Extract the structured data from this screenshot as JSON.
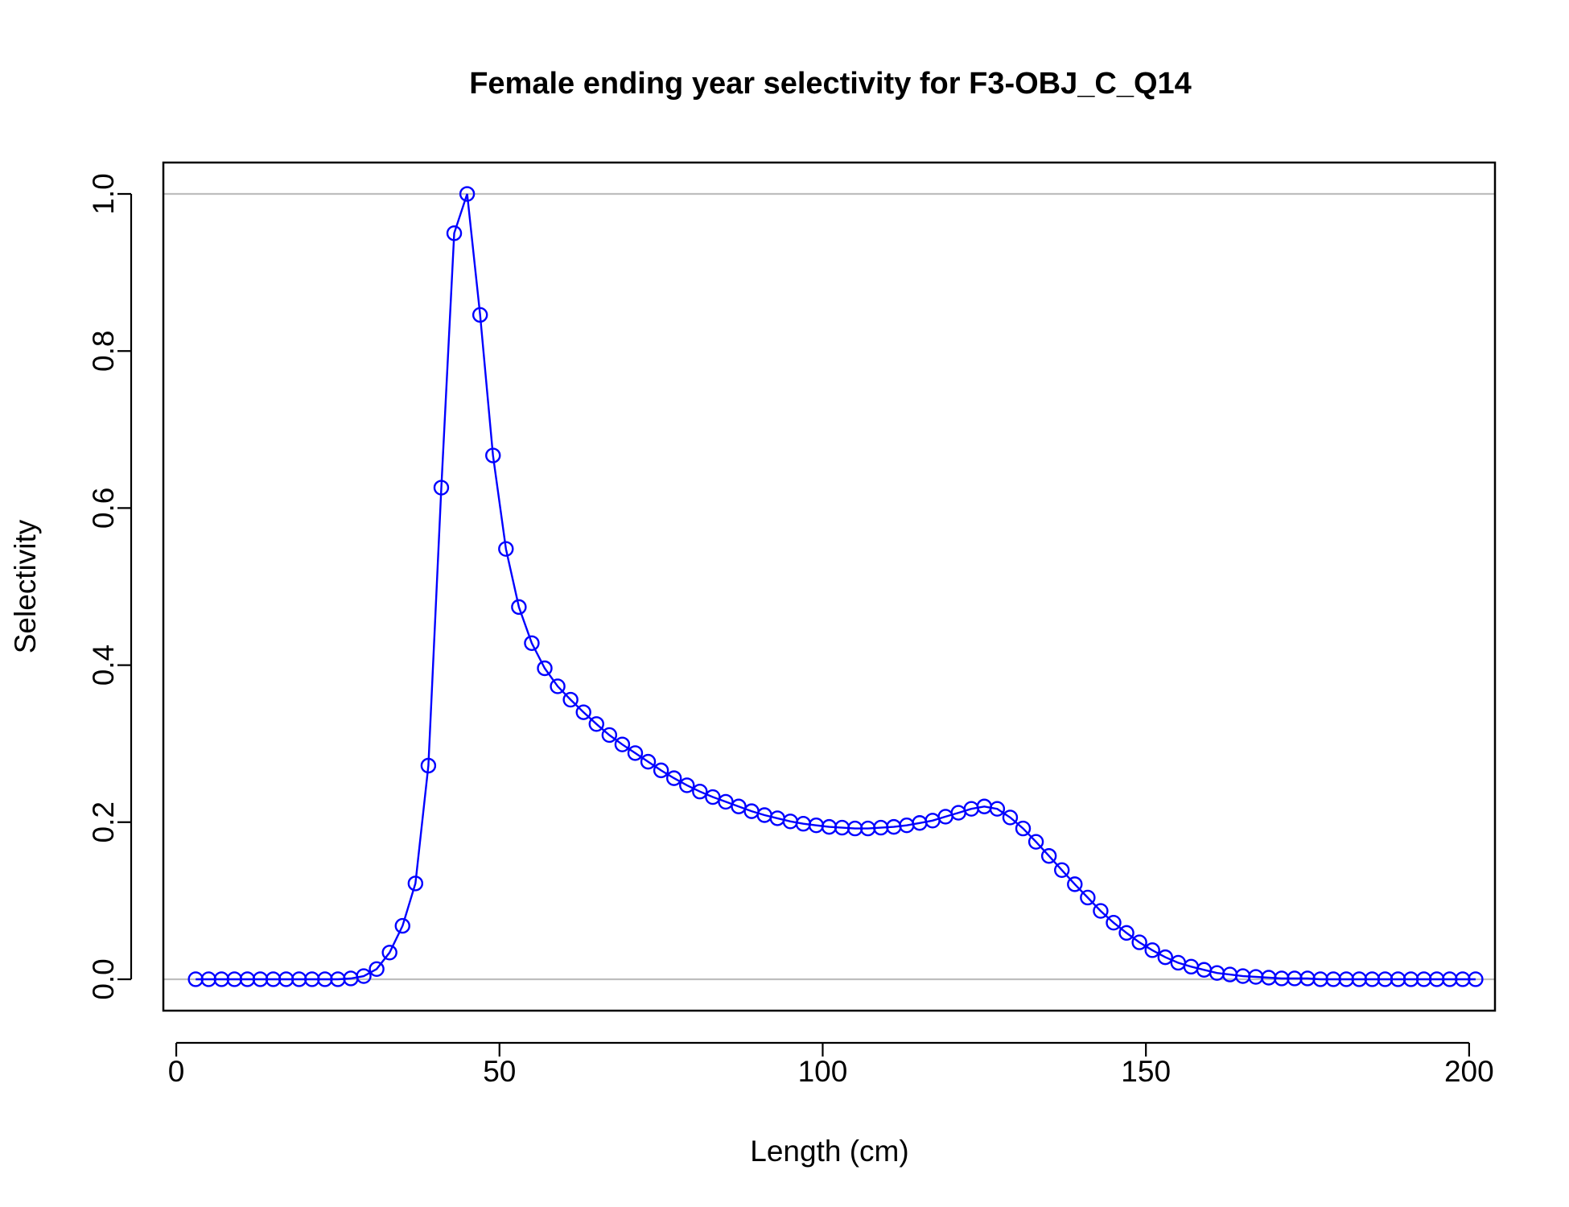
{
  "chart_data": {
    "type": "line",
    "title": "Female ending year selectivity for F3-OBJ_C_Q14",
    "xlabel": "Length (cm)",
    "ylabel": "Selectivity",
    "xlim": [
      -2,
      204
    ],
    "ylim": [
      -0.04,
      1.04
    ],
    "x_ticks": [
      0,
      50,
      100,
      150,
      200
    ],
    "x_tick_labels": [
      "0",
      "50",
      "100",
      "150",
      "200"
    ],
    "y_ticks": [
      0,
      0.2,
      0.4,
      0.6,
      0.8,
      1.0
    ],
    "y_tick_labels": [
      "0.0",
      "0.2",
      "0.4",
      "0.6",
      "0.8",
      "1.0"
    ],
    "reference_lines": [
      0,
      1
    ],
    "grid": false,
    "series": [
      {
        "markers": "open-circle",
        "color": "#0000ff",
        "x": [
          3,
          5,
          7,
          9,
          11,
          13,
          15,
          17,
          19,
          21,
          23,
          25,
          27,
          29,
          31,
          33,
          35,
          37,
          39,
          41,
          43,
          45,
          47,
          49,
          51,
          53,
          55,
          57,
          59,
          61,
          63,
          65,
          67,
          69,
          71,
          73,
          75,
          77,
          79,
          81,
          83,
          85,
          87,
          89,
          91,
          93,
          95,
          97,
          99,
          101,
          103,
          105,
          107,
          109,
          111,
          113,
          115,
          117,
          119,
          121,
          123,
          125,
          127,
          129,
          131,
          133,
          135,
          137,
          139,
          141,
          143,
          145,
          147,
          149,
          151,
          153,
          155,
          157,
          159,
          161,
          163,
          165,
          167,
          169,
          171,
          173,
          175,
          177,
          179,
          181,
          183,
          185,
          187,
          189,
          191,
          193,
          195,
          197,
          199,
          201
        ],
        "y": [
          0,
          0,
          0,
          0,
          0,
          0,
          0,
          0,
          0,
          0,
          0,
          0,
          0.001,
          0.004,
          0.013,
          0.034,
          0.068,
          0.122,
          0.272,
          0.626,
          0.95,
          1.0,
          0.846,
          0.667,
          0.548,
          0.474,
          0.428,
          0.396,
          0.373,
          0.356,
          0.34,
          0.325,
          0.311,
          0.299,
          0.288,
          0.277,
          0.266,
          0.256,
          0.247,
          0.239,
          0.232,
          0.226,
          0.22,
          0.214,
          0.209,
          0.205,
          0.201,
          0.198,
          0.196,
          0.194,
          0.193,
          0.192,
          0.192,
          0.193,
          0.194,
          0.196,
          0.199,
          0.202,
          0.207,
          0.212,
          0.217,
          0.22,
          0.217,
          0.206,
          0.192,
          0.175,
          0.157,
          0.139,
          0.121,
          0.104,
          0.087,
          0.072,
          0.059,
          0.047,
          0.037,
          0.028,
          0.021,
          0.016,
          0.012,
          0.008,
          0.006,
          0.004,
          0.003,
          0.002,
          0.001,
          0.001,
          0.001,
          0,
          0,
          0,
          0,
          0,
          0,
          0,
          0,
          0,
          0,
          0,
          0,
          0
        ]
      }
    ]
  }
}
